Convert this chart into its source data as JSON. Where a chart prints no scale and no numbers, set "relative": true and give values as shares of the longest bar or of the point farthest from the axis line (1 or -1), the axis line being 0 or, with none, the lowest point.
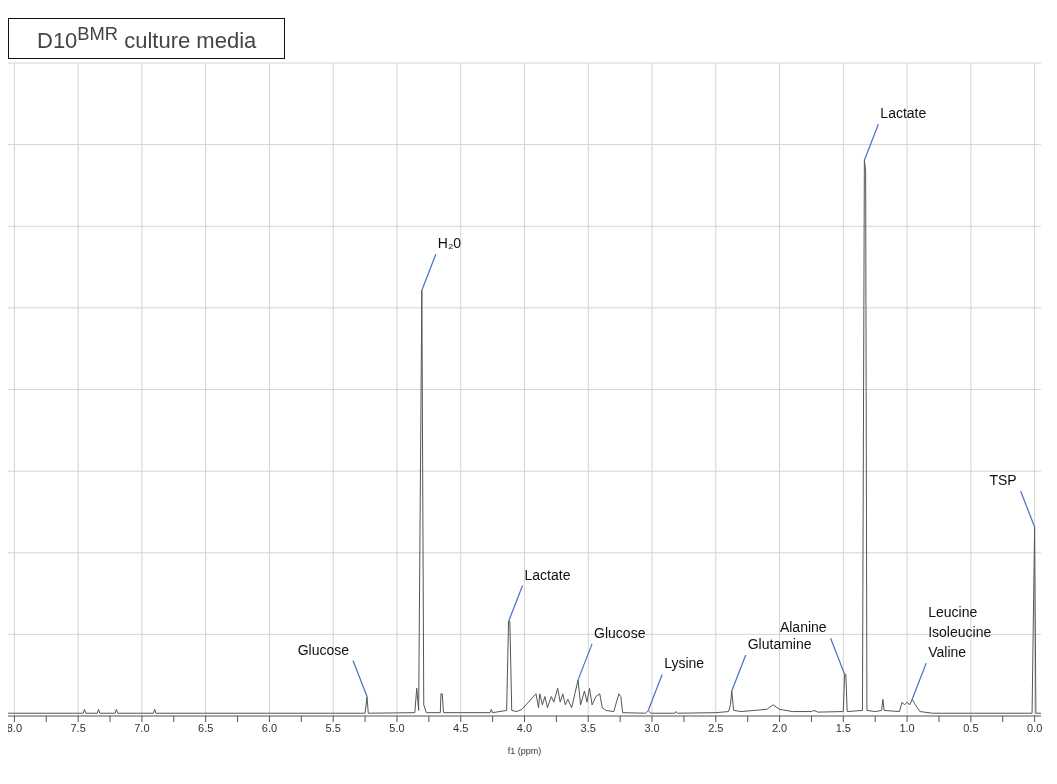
{
  "chart_data": {
    "type": "line",
    "title": "D10$^{BMR}$ culture media",
    "xlabel": "f1 (ppm)",
    "relative": true,
    "grid": true,
    "marker": "none",
    "line_style": "solid",
    "xlim": [
      8.05,
      -0.05
    ],
    "xticks": [
      {
        "value": 8.0,
        "label": "8.0"
      },
      {
        "value": 7.75,
        "label": null
      },
      7.5,
      {
        "value": 7.25,
        "label": null
      },
      {
        "value": 7.0,
        "label": "7.0"
      },
      {
        "value": 6.75,
        "label": null
      },
      6.5,
      {
        "value": 6.25,
        "label": null
      },
      {
        "value": 6.0,
        "label": "6.0"
      },
      {
        "value": 5.75,
        "label": null
      },
      5.5,
      {
        "value": 5.25,
        "label": null
      },
      {
        "value": 5.0,
        "label": "5.0"
      },
      {
        "value": 4.75,
        "label": null
      },
      4.5,
      {
        "value": 4.25,
        "label": null
      },
      {
        "value": 4.0,
        "label": "4.0"
      },
      {
        "value": 3.75,
        "label": null
      },
      3.5,
      {
        "value": 3.25,
        "label": null
      },
      {
        "value": 3.0,
        "label": "3.0"
      },
      {
        "value": 2.75,
        "label": null
      },
      2.5,
      {
        "value": 2.25,
        "label": null
      },
      {
        "value": 2.0,
        "label": "2.0"
      },
      {
        "value": 1.75,
        "label": null
      },
      1.5,
      {
        "value": 1.25,
        "label": null
      },
      {
        "value": 1.0,
        "label": "1.0"
      },
      {
        "value": 0.75,
        "label": null
      },
      0.5,
      {
        "value": 0.25,
        "label": null
      },
      {
        "value": 0.0,
        "label": "0.0"
      }
    ],
    "x": [
      8.05,
      7.46,
      7.45,
      7.44,
      7.35,
      7.34,
      7.33,
      7.21,
      7.2,
      7.19,
      6.91,
      6.9,
      6.89,
      5.25,
      5.235,
      5.225,
      4.86,
      4.845,
      4.83,
      4.805,
      4.79,
      4.77,
      4.66,
      4.655,
      4.645,
      4.635,
      4.27,
      4.26,
      4.25,
      4.14,
      4.125,
      4.115,
      4.1,
      4.06,
      4.02,
      3.91,
      3.89,
      3.88,
      3.86,
      3.84,
      3.82,
      3.79,
      3.77,
      3.74,
      3.72,
      3.7,
      3.68,
      3.66,
      3.63,
      3.58,
      3.56,
      3.53,
      3.51,
      3.49,
      3.47,
      3.44,
      3.41,
      3.39,
      3.36,
      3.3,
      3.26,
      3.245,
      3.23,
      3.05,
      3.03,
      3.01,
      2.82,
      2.81,
      2.8,
      2.5,
      2.4,
      2.385,
      2.375,
      2.36,
      2.3,
      2.1,
      2.05,
      2.0,
      1.9,
      1.75,
      1.73,
      1.7,
      1.5,
      1.49,
      1.48,
      1.47,
      1.35,
      1.335,
      1.325,
      1.315,
      1.25,
      1.2,
      1.19,
      1.18,
      1.06,
      1.04,
      1.02,
      1.0,
      0.98,
      0.96,
      0.94,
      0.9,
      0.8,
      0.02,
      0.0,
      -0.01,
      -0.05
    ],
    "series": [
      {
        "color": "#555555",
        "values": [
          0.005,
          0.005,
          0.012,
          0.005,
          0.005,
          0.012,
          0.005,
          0.005,
          0.012,
          0.005,
          0.005,
          0.012,
          0.005,
          0.005,
          0.035,
          0.005,
          0.006,
          0.05,
          0.01,
          0.766,
          0.02,
          0.006,
          0.006,
          0.04,
          0.04,
          0.006,
          0.006,
          0.012,
          0.006,
          0.01,
          0.17,
          0.17,
          0.01,
          0.008,
          0.012,
          0.04,
          0.015,
          0.04,
          0.02,
          0.035,
          0.015,
          0.035,
          0.025,
          0.05,
          0.025,
          0.04,
          0.02,
          0.03,
          0.015,
          0.065,
          0.02,
          0.045,
          0.025,
          0.05,
          0.02,
          0.035,
          0.04,
          0.015,
          0.01,
          0.008,
          0.04,
          0.035,
          0.006,
          0.005,
          0.01,
          0.005,
          0.005,
          0.008,
          0.005,
          0.006,
          0.008,
          0.02,
          0.045,
          0.01,
          0.008,
          0.012,
          0.02,
          0.012,
          0.008,
          0.008,
          0.01,
          0.007,
          0.008,
          0.075,
          0.075,
          0.008,
          0.01,
          1.0,
          0.98,
          0.01,
          0.008,
          0.01,
          0.03,
          0.01,
          0.008,
          0.025,
          0.02,
          0.025,
          0.02,
          0.03,
          0.022,
          0.008,
          0.005,
          0.005,
          0.34,
          0.005,
          0.005
        ]
      }
    ],
    "annotations": [
      {
        "text": "Glucose",
        "x": 5.235,
        "y": 0.035
      },
      {
        "text": "H₂0",
        "x": 4.805,
        "y": 0.766
      },
      {
        "text": "Lactate",
        "x": 4.125,
        "y": 0.17
      },
      {
        "text": "Glucose",
        "x": 3.58,
        "y": 0.065
      },
      {
        "text": "Lysine",
        "x": 3.03,
        "y": 0.01
      },
      {
        "text": "Glutamine",
        "x": 2.375,
        "y": 0.045
      },
      {
        "text": "Alanine",
        "x": 1.49,
        "y": 0.075
      },
      {
        "text": "Lactate",
        "x": 1.335,
        "y": 1.0
      },
      {
        "text": "Leucine\nIsoleucine\nValine",
        "x": 0.96,
        "y": 0.03
      },
      {
        "text": "TSP",
        "x": 0.0,
        "y": 0.34
      }
    ]
  }
}
